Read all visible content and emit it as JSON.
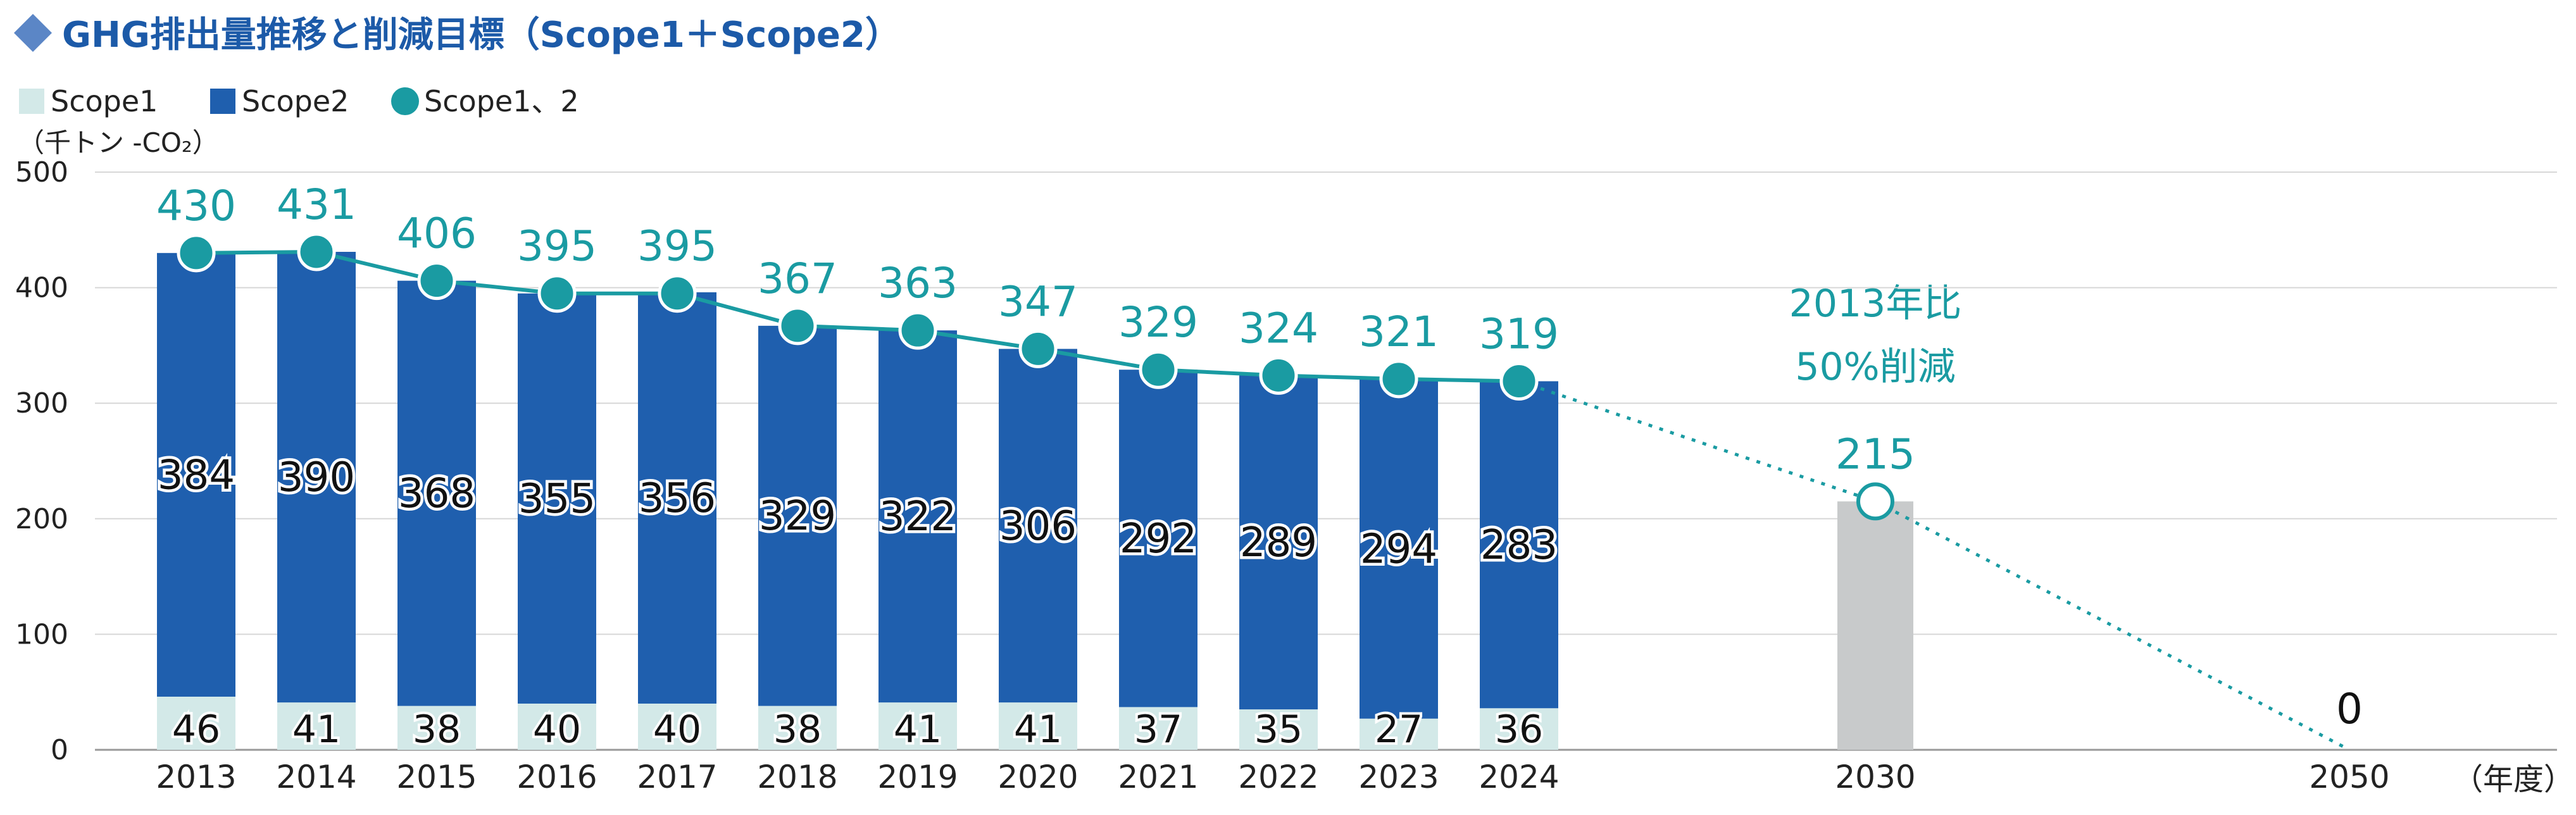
{
  "title": "GHG排出量推移と削減目標（Scope1＋Scope2）",
  "colors": {
    "scope1": "#d3e9e8",
    "scope2": "#1f5fae",
    "line": "#1a9ba2",
    "title": "#1c5aa8",
    "target_bar": "#c8cacb",
    "grid": "#d7d7d7",
    "text": "#222222"
  },
  "chart_data": {
    "type": "bar",
    "title": "GHG排出量推移と削減目標（Scope1＋Scope2）",
    "ylabel": "（千トン -CO₂）",
    "xlabel": "（年度）",
    "ylim": [
      0,
      500
    ],
    "yticks": [
      0,
      100,
      200,
      300,
      400,
      500
    ],
    "grid": true,
    "legend_position": "top-left",
    "legend": [
      "Scope1",
      "Scope2",
      "Scope1、2"
    ],
    "categories": [
      "2013",
      "2014",
      "2015",
      "2016",
      "2017",
      "2018",
      "2019",
      "2020",
      "2021",
      "2022",
      "2023",
      "2024"
    ],
    "series": [
      {
        "name": "Scope1",
        "values": [
          46,
          41,
          38,
          40,
          40,
          38,
          41,
          41,
          37,
          35,
          27,
          36
        ]
      },
      {
        "name": "Scope2",
        "values": [
          384,
          390,
          368,
          355,
          356,
          329,
          322,
          306,
          292,
          289,
          294,
          283
        ]
      },
      {
        "name": "Scope1、2",
        "values": [
          430,
          431,
          406,
          395,
          395,
          367,
          363,
          347,
          329,
          324,
          321,
          319
        ]
      }
    ],
    "targets": [
      {
        "year": "2030",
        "value": 215
      },
      {
        "year": "2050",
        "value": 0
      }
    ],
    "annotation": [
      "2013年比",
      "50%削減"
    ]
  }
}
